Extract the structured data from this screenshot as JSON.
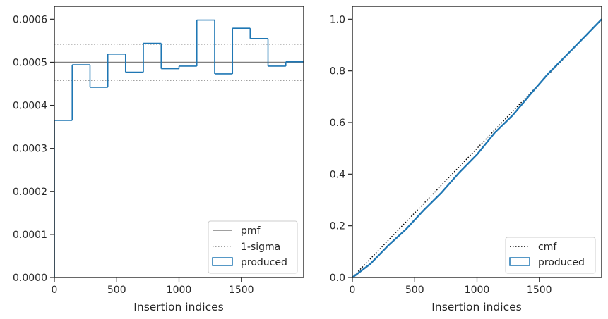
{
  "chart_data": [
    {
      "type": "histogram",
      "xlabel": "Insertion indices",
      "ylabel": "",
      "xlim": [
        0,
        2000
      ],
      "ylim": [
        0,
        0.00063
      ],
      "xticks": [
        0,
        500,
        1000,
        1500
      ],
      "xtick_labels": [
        "0",
        "500",
        "1000",
        "1500"
      ],
      "yticks": [
        0,
        0.0001,
        0.0002,
        0.0003,
        0.0004,
        0.0005,
        0.0006
      ],
      "ytick_labels": [
        "0.0000",
        "0.0001",
        "0.0002",
        "0.0003",
        "0.0004",
        "0.0005",
        "0.0006"
      ],
      "grid": false,
      "legend_position": "bottom-right",
      "pmf_value": 0.0005,
      "sigma_band": [
        0.000458,
        0.000542
      ],
      "bin_edges": [
        0,
        143,
        286,
        429,
        571,
        714,
        857,
        1000,
        1143,
        1286,
        1429,
        1571,
        1714,
        1857,
        2000
      ],
      "produced": [
        0.000365,
        0.000494,
        0.000442,
        0.000519,
        0.000477,
        0.000544,
        0.000485,
        0.000491,
        0.000598,
        0.000473,
        0.000579,
        0.000555,
        0.000491,
        0.000501
      ],
      "series": [
        {
          "name": "pmf",
          "color": "#808080",
          "style": "solid"
        },
        {
          "name": "1-sigma",
          "color": "#808080",
          "style": "dotted"
        },
        {
          "name": "produced",
          "color": "#1f77b4",
          "style": "step"
        }
      ]
    },
    {
      "type": "line",
      "xlabel": "Insertion indices",
      "ylabel": "",
      "xlim": [
        0,
        2000
      ],
      "ylim": [
        0,
        1.05
      ],
      "xticks": [
        0,
        500,
        1000,
        1500
      ],
      "xtick_labels": [
        "0",
        "500",
        "1000",
        "1500"
      ],
      "yticks": [
        0,
        0.2,
        0.4,
        0.6,
        0.8,
        1.0
      ],
      "ytick_labels": [
        "0.0",
        "0.2",
        "0.4",
        "0.6",
        "0.8",
        "1.0"
      ],
      "grid": false,
      "legend_position": "bottom-right",
      "cmf": {
        "x": [
          0,
          2000
        ],
        "y": [
          0,
          1.0
        ]
      },
      "produced": {
        "x": [
          0,
          143,
          286,
          429,
          571,
          714,
          857,
          1000,
          1143,
          1286,
          1429,
          1571,
          1714,
          1857,
          2000
        ],
        "y": [
          0,
          0.052,
          0.123,
          0.186,
          0.26,
          0.328,
          0.406,
          0.476,
          0.561,
          0.628,
          0.71,
          0.789,
          0.859,
          0.929,
          1.0
        ]
      },
      "series": [
        {
          "name": "cmf",
          "color": "#000000",
          "style": "dotted"
        },
        {
          "name": "produced",
          "color": "#1f77b4",
          "style": "step"
        }
      ]
    }
  ]
}
